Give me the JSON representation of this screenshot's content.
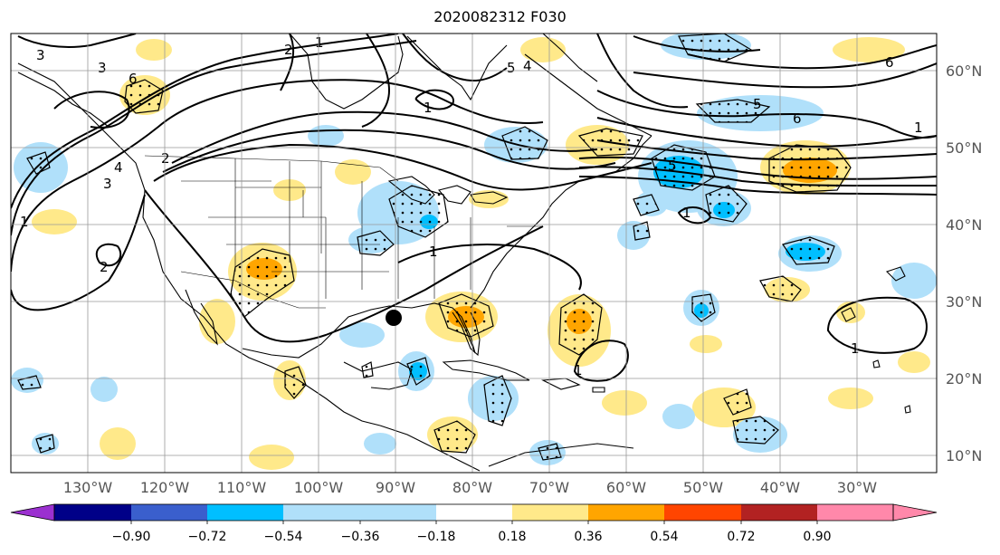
{
  "title": "2020082312 F030",
  "longitude_labels": [
    "130°W",
    "120°W",
    "110°W",
    "100°W",
    "90°W",
    "80°W",
    "70°W",
    "60°W",
    "50°W",
    "40°W",
    "30°W"
  ],
  "latitude_labels": [
    "60°N",
    "50°N",
    "40°N",
    "30°N",
    "20°N",
    "10°N"
  ],
  "colorbar": {
    "ticks": [
      "−0.90",
      "−0.72",
      "−0.54",
      "−0.36",
      "−0.18",
      "0.18",
      "0.36",
      "0.54",
      "0.72",
      "0.90"
    ],
    "colors": [
      "#9b30d0",
      "#000088",
      "#3a5fcd",
      "#00bfff",
      "#b0e0fa",
      "#ffffff",
      "#ffe98a",
      "#ffa500",
      "#ff4500",
      "#b22222",
      "#ff88aa"
    ]
  },
  "contour_labels": [
    "3",
    "2",
    "1",
    "6",
    "3",
    "4",
    "3",
    "1",
    "2",
    "2",
    "1",
    "5",
    "4",
    "6",
    "5",
    "6",
    "5",
    "1",
    "1",
    "1",
    "1",
    "1"
  ],
  "colors": {
    "positive_light": "#ffe98a",
    "positive_mid": "#ffa500",
    "negative_light": "#b0e0fa",
    "negative_mid": "#00bfff",
    "contour": "#000000",
    "grid": "#999999"
  },
  "markers": {
    "point_location": "Louisiana coast (~90°W, 28°N)"
  }
}
